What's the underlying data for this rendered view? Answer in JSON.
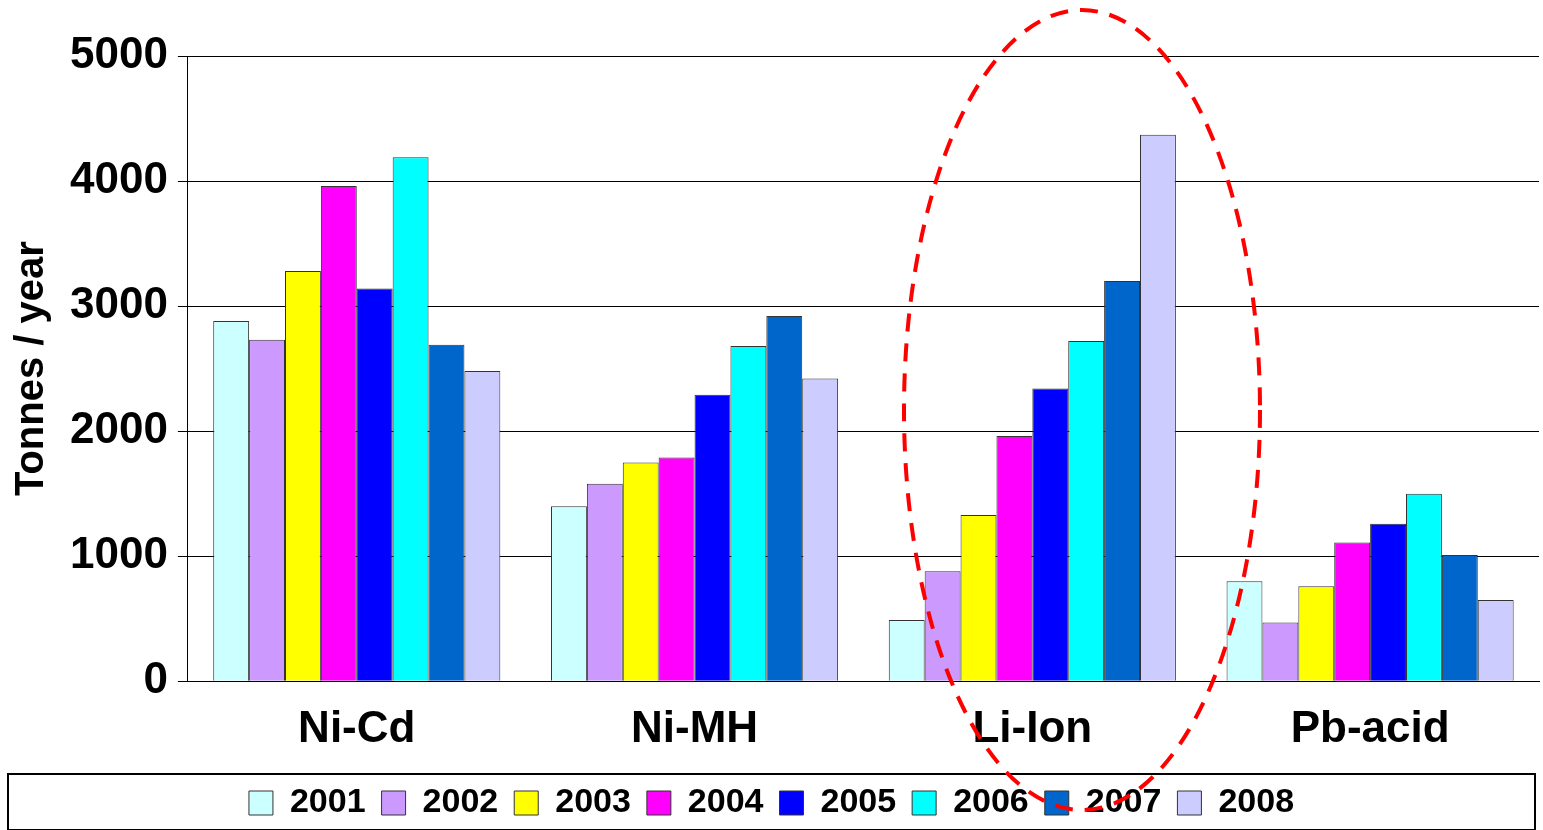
{
  "chart_data": {
    "type": "bar",
    "ylabel": "Tonnes / year",
    "categories": [
      "Ni-Cd",
      "Ni-MH",
      "Li-Ion",
      "Pb-acid"
    ],
    "series": [
      {
        "name": "2001",
        "color": "#ccffff",
        "values": [
          2880,
          1400,
          490,
          800
        ]
      },
      {
        "name": "2002",
        "color": "#cc99ff",
        "values": [
          2730,
          1580,
          880,
          470
        ]
      },
      {
        "name": "2003",
        "color": "#ffff00",
        "values": [
          3280,
          1750,
          1330,
          760
        ]
      },
      {
        "name": "2004",
        "color": "#ff00ff",
        "values": [
          3960,
          1790,
          1960,
          1110
        ]
      },
      {
        "name": "2005",
        "color": "#0000ff",
        "values": [
          3140,
          2290,
          2340,
          1260
        ]
      },
      {
        "name": "2006",
        "color": "#00ffff",
        "values": [
          4190,
          2680,
          2720,
          1500
        ]
      },
      {
        "name": "2007",
        "color": "#0066cc",
        "values": [
          2690,
          2920,
          3200,
          1010
        ]
      },
      {
        "name": "2008",
        "color": "#ccccff",
        "values": [
          2480,
          2420,
          4370,
          650
        ]
      }
    ],
    "ylim": [
      0,
      5000
    ],
    "yticks": [
      0,
      1000,
      2000,
      3000,
      4000,
      5000
    ],
    "grid": "y",
    "legend": "bottom"
  }
}
